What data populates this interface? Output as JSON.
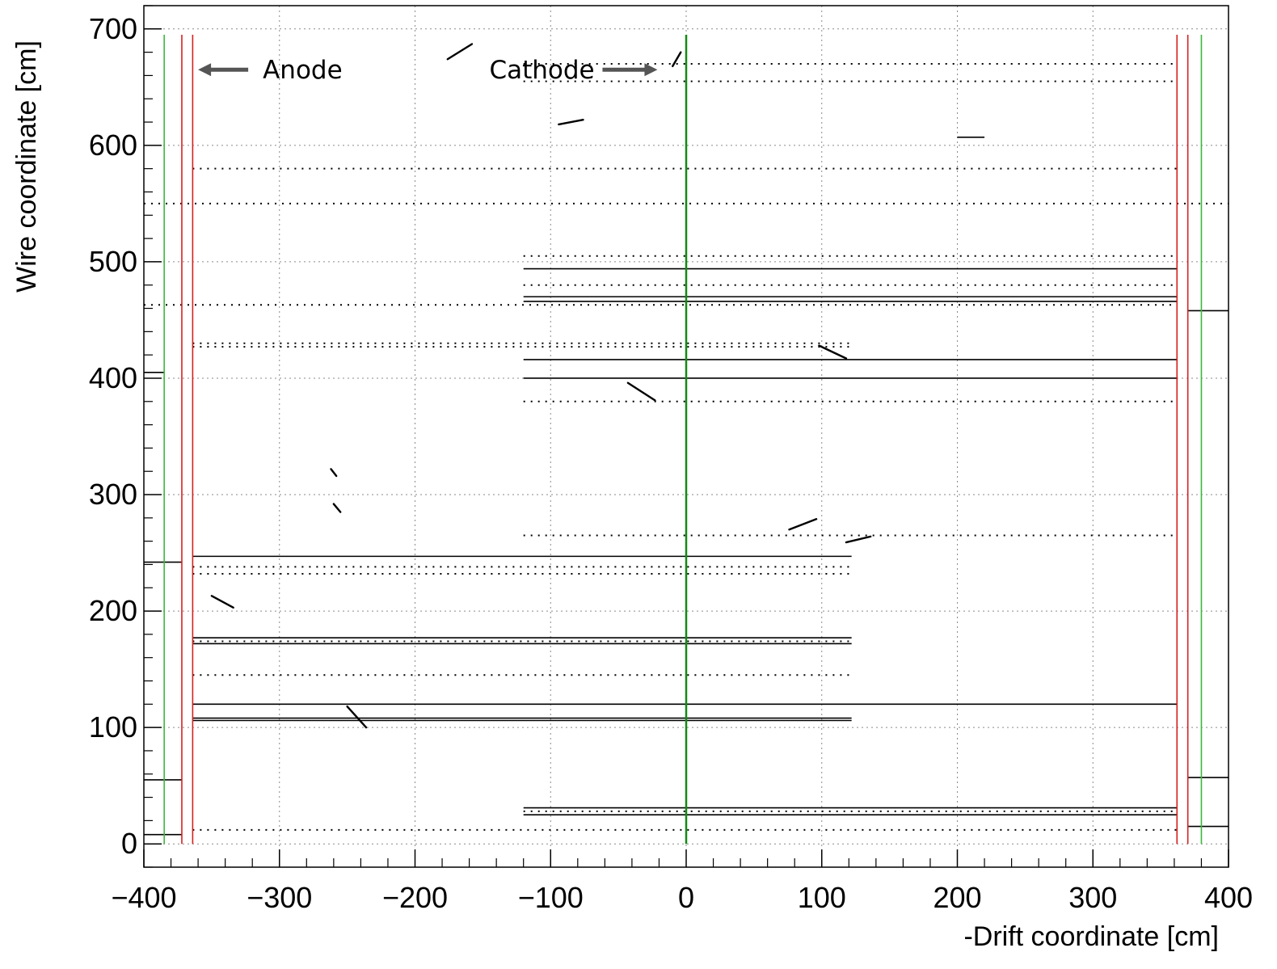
{
  "chart_data": {
    "type": "scatter",
    "title": "",
    "xlabel": "-Drift coordinate [cm]",
    "ylabel": "Wire coordinate [cm]",
    "xlim": [
      -400,
      400
    ],
    "ylim": [
      -20,
      720
    ],
    "grid": true,
    "x_ticks": [
      -400,
      -300,
      -200,
      -100,
      0,
      100,
      200,
      300,
      400
    ],
    "y_ticks": [
      0,
      100,
      200,
      300,
      400,
      500,
      600,
      700
    ],
    "tick_labels_x": [
      "−400",
      "−300",
      "−200",
      "−100",
      "0",
      "100",
      "200",
      "300",
      "400"
    ],
    "tick_labels_y": [
      "0",
      "100",
      "200",
      "300",
      "400",
      "500",
      "600",
      "700"
    ],
    "annotations": [
      {
        "text": "Anode",
        "x": -360,
        "y": 665,
        "arrow": "left"
      },
      {
        "text": "Cathode",
        "x": -20,
        "y": 665,
        "arrow": "right"
      }
    ],
    "boundaries": [
      {
        "name": "cathode",
        "x": 0,
        "y_range": [
          0,
          695
        ],
        "color": "#138a13"
      },
      {
        "name": "anode",
        "x": -372,
        "y_range": [
          0,
          695
        ],
        "color": "#d62020"
      },
      {
        "name": "anode",
        "x": -364,
        "y_range": [
          0,
          695
        ],
        "color": "#d62020"
      },
      {
        "name": "anode",
        "x": 362,
        "y_range": [
          0,
          695
        ],
        "color": "#d62020"
      },
      {
        "name": "anode",
        "x": 370,
        "y_range": [
          0,
          695
        ],
        "color": "#d62020"
      },
      {
        "name": "outer",
        "x": -385,
        "y_range": [
          0,
          695
        ],
        "color": "#3cb83c"
      },
      {
        "name": "outer",
        "x": 380,
        "y_range": [
          0,
          695
        ],
        "color": "#3cb83c"
      }
    ],
    "segments": [
      {
        "x1": -120,
        "x2": 362,
        "y": 494
      },
      {
        "x1": -120,
        "x2": 362,
        "y": 470
      },
      {
        "x1": -120,
        "x2": 362,
        "y": 466
      },
      {
        "x1": -120,
        "x2": 362,
        "y": 416
      },
      {
        "x1": -120,
        "x2": 362,
        "y": 400
      },
      {
        "x1": -364,
        "x2": 122,
        "y": 247
      },
      {
        "x1": -364,
        "x2": 122,
        "y": 177
      },
      {
        "x1": -364,
        "x2": 122,
        "y": 172
      },
      {
        "x1": -364,
        "x2": 362,
        "y": 120
      },
      {
        "x1": -364,
        "x2": 122,
        "y": 108
      },
      {
        "x1": -364,
        "x2": 122,
        "y": 106
      },
      {
        "x1": -120,
        "x2": 362,
        "y": 31
      },
      {
        "x1": -120,
        "x2": 362,
        "y": 25
      },
      {
        "x1": -400,
        "x2": -372,
        "y": 242
      },
      {
        "x1": -400,
        "x2": -372,
        "y": 55
      },
      {
        "x1": -400,
        "x2": -372,
        "y": 8
      },
      {
        "x1": -400,
        "x2": -385,
        "y": 405
      },
      {
        "x1": 370,
        "x2": 400,
        "y": 458
      },
      {
        "x1": 370,
        "x2": 400,
        "y": 57
      },
      {
        "x1": 370,
        "x2": 400,
        "y": 15
      },
      {
        "x1": 200,
        "x2": 220,
        "y": 607
      }
    ],
    "dotted_rows": [
      {
        "x1": -120,
        "x2": 362,
        "y": 505
      },
      {
        "x1": -400,
        "x2": 362,
        "y": 463
      },
      {
        "x1": -364,
        "x2": 122,
        "y": 430
      },
      {
        "x1": -364,
        "x2": 122,
        "y": 427
      },
      {
        "x1": -364,
        "x2": 122,
        "y": 238
      },
      {
        "x1": -364,
        "x2": 122,
        "y": 232
      },
      {
        "x1": -364,
        "x2": 122,
        "y": 174
      },
      {
        "x1": -120,
        "x2": 362,
        "y": 28
      },
      {
        "x1": -400,
        "x2": 400,
        "y": 550
      },
      {
        "x1": -120,
        "x2": 362,
        "y": 480
      },
      {
        "x1": -364,
        "x2": 362,
        "y": 580
      },
      {
        "x1": -120,
        "x2": 362,
        "y": 380
      },
      {
        "x1": -120,
        "x2": 362,
        "y": 265
      },
      {
        "x1": -364,
        "x2": 122,
        "y": 145
      },
      {
        "x1": -364,
        "x2": 362,
        "y": 12
      },
      {
        "x1": -120,
        "x2": 362,
        "y": 670
      },
      {
        "x1": -120,
        "x2": 362,
        "y": 655
      }
    ],
    "tracks": [
      {
        "x1": -176,
        "y1": 674,
        "x2": -158,
        "y2": 687
      },
      {
        "x1": -94,
        "y1": 618,
        "x2": -76,
        "y2": 622
      },
      {
        "x1": -43,
        "y1": 396,
        "x2": -23,
        "y2": 381
      },
      {
        "x1": -10,
        "y1": 668,
        "x2": -4,
        "y2": 680
      },
      {
        "x1": 98,
        "y1": 428,
        "x2": 118,
        "y2": 417
      },
      {
        "x1": 76,
        "y1": 270,
        "x2": 96,
        "y2": 279
      },
      {
        "x1": 118,
        "y1": 259,
        "x2": 136,
        "y2": 264
      },
      {
        "x1": -350,
        "y1": 213,
        "x2": -334,
        "y2": 203
      },
      {
        "x1": -250,
        "y1": 118,
        "x2": -236,
        "y2": 100
      },
      {
        "x1": -260,
        "y1": 292,
        "x2": -255,
        "y2": 285
      },
      {
        "x1": -262,
        "y1": 322,
        "x2": -258,
        "y2": 316
      }
    ]
  }
}
